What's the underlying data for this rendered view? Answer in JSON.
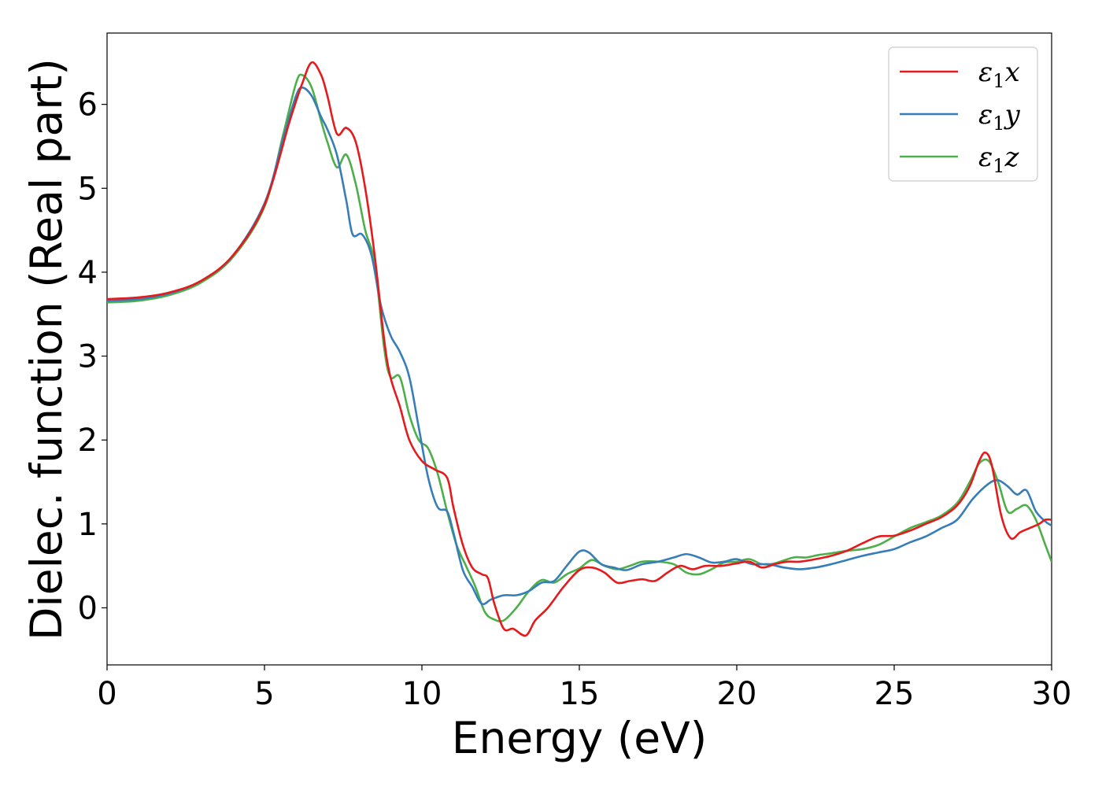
{
  "chart_data": {
    "type": "line",
    "xlabel": "Energy (eV)",
    "ylabel": "Dielec. function (Real part)",
    "xlim": [
      0,
      30
    ],
    "ylim": [
      -0.68,
      6.85
    ],
    "xticks": [
      "0",
      "5",
      "10",
      "15",
      "20",
      "25",
      "30"
    ],
    "yticks": [
      "0",
      "1",
      "2",
      "3",
      "4",
      "5",
      "6"
    ],
    "grid": false,
    "legend_position": "top-right",
    "series": [
      {
        "name": "ε₁x",
        "legend_base": "ε",
        "legend_sub": "1",
        "legend_suffix": "x",
        "color": "#e41a1c",
        "points": [
          [
            0,
            3.68
          ],
          [
            1,
            3.7
          ],
          [
            2,
            3.76
          ],
          [
            3,
            3.9
          ],
          [
            4,
            4.2
          ],
          [
            5,
            4.8
          ],
          [
            5.8,
            5.8
          ],
          [
            6.2,
            6.25
          ],
          [
            6.5,
            6.5
          ],
          [
            6.8,
            6.35
          ],
          [
            7.0,
            6.1
          ],
          [
            7.3,
            5.65
          ],
          [
            7.6,
            5.72
          ],
          [
            7.9,
            5.55
          ],
          [
            8.2,
            5.0
          ],
          [
            8.5,
            4.2
          ],
          [
            8.8,
            3.2
          ],
          [
            9.0,
            2.75
          ],
          [
            9.3,
            2.4
          ],
          [
            9.6,
            2.0
          ],
          [
            10.0,
            1.75
          ],
          [
            10.4,
            1.65
          ],
          [
            10.8,
            1.55
          ],
          [
            11.0,
            1.2
          ],
          [
            11.3,
            0.75
          ],
          [
            11.6,
            0.48
          ],
          [
            11.9,
            0.4
          ],
          [
            12.1,
            0.35
          ],
          [
            12.3,
            0.05
          ],
          [
            12.6,
            -0.25
          ],
          [
            12.9,
            -0.25
          ],
          [
            13.3,
            -0.33
          ],
          [
            13.6,
            -0.15
          ],
          [
            14.0,
            0.0
          ],
          [
            14.5,
            0.25
          ],
          [
            15.0,
            0.45
          ],
          [
            15.4,
            0.48
          ],
          [
            15.8,
            0.42
          ],
          [
            16.2,
            0.3
          ],
          [
            16.6,
            0.32
          ],
          [
            17.0,
            0.34
          ],
          [
            17.4,
            0.32
          ],
          [
            17.8,
            0.42
          ],
          [
            18.2,
            0.5
          ],
          [
            18.6,
            0.46
          ],
          [
            19.0,
            0.5
          ],
          [
            19.5,
            0.5
          ],
          [
            20.0,
            0.53
          ],
          [
            20.4,
            0.55
          ],
          [
            20.8,
            0.48
          ],
          [
            21.2,
            0.52
          ],
          [
            21.6,
            0.55
          ],
          [
            22.0,
            0.55
          ],
          [
            22.5,
            0.58
          ],
          [
            23.0,
            0.62
          ],
          [
            23.5,
            0.68
          ],
          [
            24.0,
            0.77
          ],
          [
            24.5,
            0.85
          ],
          [
            25.0,
            0.86
          ],
          [
            25.5,
            0.92
          ],
          [
            26.0,
            1.0
          ],
          [
            26.5,
            1.08
          ],
          [
            27.0,
            1.22
          ],
          [
            27.4,
            1.45
          ],
          [
            27.7,
            1.75
          ],
          [
            27.9,
            1.85
          ],
          [
            28.1,
            1.7
          ],
          [
            28.4,
            1.1
          ],
          [
            28.7,
            0.83
          ],
          [
            29.0,
            0.9
          ],
          [
            29.3,
            0.95
          ],
          [
            29.6,
            1.0
          ],
          [
            29.8,
            1.05
          ],
          [
            30.0,
            1.05
          ]
        ]
      },
      {
        "name": "ε₁y",
        "legend_base": "ε",
        "legend_sub": "1",
        "legend_suffix": "y",
        "color": "#377eb8",
        "points": [
          [
            0,
            3.66
          ],
          [
            1,
            3.68
          ],
          [
            2,
            3.75
          ],
          [
            3,
            3.9
          ],
          [
            4,
            4.2
          ],
          [
            5,
            4.82
          ],
          [
            5.6,
            5.6
          ],
          [
            6.0,
            6.1
          ],
          [
            6.2,
            6.2
          ],
          [
            6.5,
            6.1
          ],
          [
            6.8,
            5.85
          ],
          [
            7.0,
            5.7
          ],
          [
            7.3,
            5.4
          ],
          [
            7.6,
            4.85
          ],
          [
            7.8,
            4.45
          ],
          [
            8.1,
            4.45
          ],
          [
            8.4,
            4.2
          ],
          [
            8.7,
            3.6
          ],
          [
            9.0,
            3.25
          ],
          [
            9.3,
            3.05
          ],
          [
            9.6,
            2.75
          ],
          [
            9.9,
            2.15
          ],
          [
            10.2,
            1.55
          ],
          [
            10.5,
            1.2
          ],
          [
            10.8,
            1.15
          ],
          [
            11.0,
            0.9
          ],
          [
            11.3,
            0.45
          ],
          [
            11.6,
            0.25
          ],
          [
            11.9,
            0.05
          ],
          [
            12.2,
            0.1
          ],
          [
            12.6,
            0.15
          ],
          [
            13.0,
            0.15
          ],
          [
            13.4,
            0.2
          ],
          [
            13.8,
            0.3
          ],
          [
            14.2,
            0.32
          ],
          [
            14.6,
            0.5
          ],
          [
            15.0,
            0.67
          ],
          [
            15.3,
            0.66
          ],
          [
            15.7,
            0.52
          ],
          [
            16.1,
            0.48
          ],
          [
            16.5,
            0.45
          ],
          [
            17.0,
            0.52
          ],
          [
            17.5,
            0.55
          ],
          [
            18.0,
            0.6
          ],
          [
            18.4,
            0.64
          ],
          [
            18.8,
            0.6
          ],
          [
            19.2,
            0.54
          ],
          [
            19.6,
            0.55
          ],
          [
            20.0,
            0.58
          ],
          [
            20.5,
            0.52
          ],
          [
            21.0,
            0.52
          ],
          [
            21.5,
            0.48
          ],
          [
            22.0,
            0.46
          ],
          [
            22.5,
            0.48
          ],
          [
            23.0,
            0.52
          ],
          [
            23.5,
            0.57
          ],
          [
            24.0,
            0.62
          ],
          [
            24.5,
            0.66
          ],
          [
            25.0,
            0.7
          ],
          [
            25.5,
            0.78
          ],
          [
            26.0,
            0.85
          ],
          [
            26.5,
            0.95
          ],
          [
            27.0,
            1.05
          ],
          [
            27.5,
            1.3
          ],
          [
            28.0,
            1.48
          ],
          [
            28.3,
            1.52
          ],
          [
            28.6,
            1.45
          ],
          [
            28.9,
            1.35
          ],
          [
            29.2,
            1.4
          ],
          [
            29.5,
            1.15
          ],
          [
            29.8,
            1.03
          ],
          [
            30.0,
            0.98
          ]
        ]
      },
      {
        "name": "ε₁z",
        "legend_base": "ε",
        "legend_sub": "1",
        "legend_suffix": "z",
        "color": "#4daf4a",
        "points": [
          [
            0,
            3.64
          ],
          [
            1,
            3.66
          ],
          [
            2,
            3.73
          ],
          [
            3,
            3.88
          ],
          [
            4,
            4.18
          ],
          [
            5,
            4.78
          ],
          [
            5.6,
            5.65
          ],
          [
            6.0,
            6.25
          ],
          [
            6.2,
            6.35
          ],
          [
            6.5,
            6.2
          ],
          [
            6.8,
            5.8
          ],
          [
            7.0,
            5.55
          ],
          [
            7.3,
            5.25
          ],
          [
            7.6,
            5.4
          ],
          [
            7.9,
            5.05
          ],
          [
            8.2,
            4.5
          ],
          [
            8.5,
            4.1
          ],
          [
            8.8,
            3.1
          ],
          [
            9.0,
            2.75
          ],
          [
            9.3,
            2.75
          ],
          [
            9.6,
            2.3
          ],
          [
            9.9,
            2.0
          ],
          [
            10.2,
            1.9
          ],
          [
            10.5,
            1.6
          ],
          [
            10.8,
            1.15
          ],
          [
            11.1,
            0.75
          ],
          [
            11.4,
            0.5
          ],
          [
            11.7,
            0.25
          ],
          [
            12.0,
            -0.05
          ],
          [
            12.3,
            -0.14
          ],
          [
            12.6,
            -0.15
          ],
          [
            13.0,
            0.0
          ],
          [
            13.4,
            0.2
          ],
          [
            13.8,
            0.33
          ],
          [
            14.2,
            0.3
          ],
          [
            14.6,
            0.4
          ],
          [
            15.0,
            0.47
          ],
          [
            15.4,
            0.57
          ],
          [
            15.8,
            0.5
          ],
          [
            16.2,
            0.46
          ],
          [
            16.6,
            0.5
          ],
          [
            17.0,
            0.55
          ],
          [
            17.5,
            0.55
          ],
          [
            18.0,
            0.52
          ],
          [
            18.4,
            0.42
          ],
          [
            18.8,
            0.4
          ],
          [
            19.2,
            0.46
          ],
          [
            19.6,
            0.54
          ],
          [
            20.0,
            0.55
          ],
          [
            20.4,
            0.58
          ],
          [
            20.8,
            0.52
          ],
          [
            21.2,
            0.53
          ],
          [
            21.8,
            0.6
          ],
          [
            22.2,
            0.6
          ],
          [
            22.6,
            0.63
          ],
          [
            23.0,
            0.65
          ],
          [
            23.5,
            0.68
          ],
          [
            24.0,
            0.7
          ],
          [
            24.5,
            0.75
          ],
          [
            25.0,
            0.85
          ],
          [
            25.5,
            0.95
          ],
          [
            26.0,
            1.02
          ],
          [
            26.5,
            1.1
          ],
          [
            27.0,
            1.25
          ],
          [
            27.4,
            1.5
          ],
          [
            27.7,
            1.72
          ],
          [
            28.0,
            1.75
          ],
          [
            28.3,
            1.5
          ],
          [
            28.6,
            1.15
          ],
          [
            28.9,
            1.18
          ],
          [
            29.2,
            1.22
          ],
          [
            29.5,
            1.05
          ],
          [
            29.8,
            0.75
          ],
          [
            30.0,
            0.55
          ]
        ]
      }
    ]
  }
}
